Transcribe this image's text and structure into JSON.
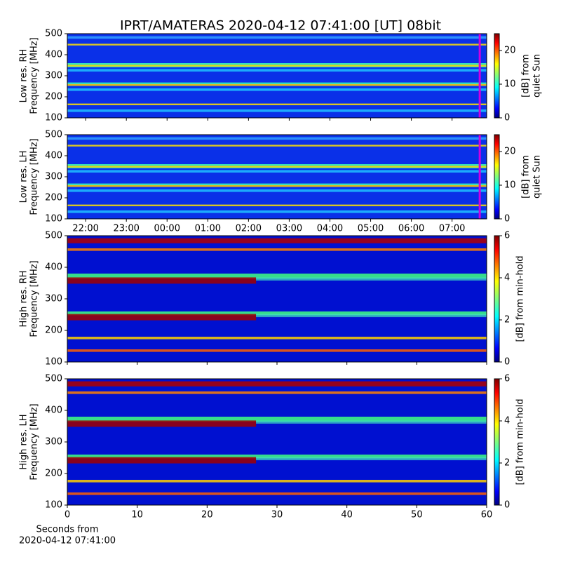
{
  "chart_data": [
    {
      "type": "spectrogram",
      "title": "IPRT/AMATERAS 2020-04-12 07:41:00 [UT]   08bit",
      "ylabel": [
        "Low res. RH",
        "Frequency [MHz]"
      ],
      "ylim": [
        100,
        500
      ],
      "yticks": [
        100,
        200,
        300,
        400,
        500
      ],
      "xlim": [
        21.55,
        31.85
      ],
      "marker_x": 31.68,
      "marker_color": "#d000e0",
      "colorbar": {
        "label": [
          "[dB] from",
          "quiet Sun"
        ],
        "lim": [
          0,
          25
        ],
        "ticks": [
          0,
          10,
          20
        ]
      }
    },
    {
      "type": "spectrogram",
      "ylabel": [
        "Low res. LH",
        "Frequency [MHz]"
      ],
      "ylim": [
        100,
        500
      ],
      "yticks": [
        100,
        200,
        300,
        400,
        500
      ],
      "xlim": [
        21.55,
        31.85
      ],
      "marker_x": 31.68,
      "marker_color": "#d000e0",
      "xticks": [
        {
          "value": 22,
          "label": "22:00"
        },
        {
          "value": 23,
          "label": "23:00"
        },
        {
          "value": 24,
          "label": "00:00"
        },
        {
          "value": 25,
          "label": "01:00"
        },
        {
          "value": 26,
          "label": "02:00"
        },
        {
          "value": 27,
          "label": "03:00"
        },
        {
          "value": 28,
          "label": "04:00"
        },
        {
          "value": 29,
          "label": "05:00"
        },
        {
          "value": 30,
          "label": "06:00"
        },
        {
          "value": 31,
          "label": "07:00"
        }
      ],
      "colorbar": {
        "label": [
          "[dB] from",
          "quiet Sun"
        ],
        "lim": [
          0,
          25
        ],
        "ticks": [
          0,
          10,
          20
        ]
      }
    },
    {
      "type": "spectrogram",
      "ylabel": [
        "High res. RH",
        "Frequency [MHz]"
      ],
      "ylim": [
        100,
        500
      ],
      "yticks": [
        100,
        200,
        300,
        400,
        500
      ],
      "xlim": [
        0,
        60
      ],
      "colorbar": {
        "label": [
          "[dB] from min-hold"
        ],
        "lim": [
          0,
          6
        ],
        "ticks": [
          0,
          2,
          4,
          6
        ]
      }
    },
    {
      "type": "spectrogram",
      "ylabel": [
        "High res. LH",
        "Frequency [MHz]"
      ],
      "ylim": [
        100,
        500
      ],
      "yticks": [
        100,
        200,
        300,
        400,
        500
      ],
      "xlim": [
        0,
        60
      ],
      "xticks": [
        0,
        10,
        20,
        30,
        40,
        50,
        60
      ],
      "xlabel": [
        "Seconds from",
        "2020-04-12 07:41:00"
      ],
      "colorbar": {
        "label": [
          "[dB] from min-hold"
        ],
        "lim": [
          0,
          6
        ],
        "ticks": [
          0,
          2,
          4,
          6
        ]
      }
    }
  ]
}
